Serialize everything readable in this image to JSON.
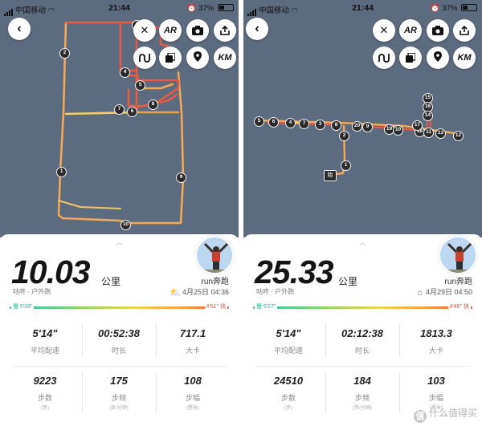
{
  "colors": {
    "map_bg": "#5d6b7e",
    "route_warm": "#f0a85a",
    "route_hot": "#e45b49",
    "route_cool": "#f5cf66",
    "marker": "#2b2b2b"
  },
  "left": {
    "status": {
      "carrier": "中国移动",
      "time": "21:44",
      "battery": "37%"
    },
    "controls": {
      "close": "✕",
      "ar": "AR",
      "camera_icon": "camera-icon",
      "share_icon": "share-icon",
      "route_icon": "route-icon",
      "layers_icon": "layers-icon",
      "location_icon": "location-icon",
      "km": "KM"
    },
    "markers": [
      {
        "label": "2"
      },
      {
        "label": "3"
      },
      {
        "label": "4"
      },
      {
        "label": "5"
      },
      {
        "label": "7"
      },
      {
        "label": "6"
      },
      {
        "label": "8"
      },
      {
        "label": "1"
      },
      {
        "label": "9"
      },
      {
        "label": "10"
      }
    ],
    "distance": "10.03",
    "unit": "公里",
    "username": "run奔跑",
    "subtitle": "咕咚 · 户外跑",
    "weather_icon": "cloud-sun-icon",
    "date": "4月25日 04:36",
    "pace_slow": "慢 5'39\"",
    "pace_fast": "4'51\" 快",
    "stats": [
      {
        "value": "5'14\"",
        "label": "平均配速",
        "sub": ""
      },
      {
        "value": "00:52:38",
        "label": "时长",
        "sub": ""
      },
      {
        "value": "717.1",
        "label": "大卡",
        "sub": ""
      },
      {
        "value": "9223",
        "label": "步数",
        "sub": "(步)"
      },
      {
        "value": "175",
        "label": "步频",
        "sub": "(步/分钟)"
      },
      {
        "value": "108",
        "label": "步幅",
        "sub": "(厘米)"
      }
    ]
  },
  "right": {
    "status": {
      "carrier": "中国移动",
      "time": "21:44",
      "battery": "37%"
    },
    "controls": {
      "close": "✕",
      "ar": "AR",
      "camera_icon": "camera-icon",
      "share_icon": "share-icon",
      "route_icon": "route-icon",
      "layers_icon": "layers-icon",
      "location_icon": "location-icon",
      "km": "KM"
    },
    "markers": [
      {
        "label": "5"
      },
      {
        "label": "6"
      },
      {
        "label": "4"
      },
      {
        "label": "7"
      },
      {
        "label": "3"
      },
      {
        "label": "8"
      },
      {
        "label": "20"
      },
      {
        "label": "9"
      },
      {
        "label": "2"
      },
      {
        "label": "19"
      },
      {
        "label": "10"
      },
      {
        "label": "18"
      },
      {
        "label": "11"
      },
      {
        "label": "13"
      },
      {
        "label": "12"
      },
      {
        "label": "15"
      },
      {
        "label": "16"
      },
      {
        "label": "14"
      },
      {
        "label": "17"
      },
      {
        "label": "1"
      }
    ],
    "start_label": "始",
    "distance": "25.33",
    "unit": "公里",
    "username": "run奔跑",
    "subtitle": "咕咚 · 户外跑",
    "weather_icon": "sun-icon",
    "date": "4月29日 04:50",
    "pace_slow": "慢 6'27\"",
    "pace_fast": "4'49\" 快",
    "stats": [
      {
        "value": "5'14\"",
        "label": "平均配速",
        "sub": ""
      },
      {
        "value": "02:12:38",
        "label": "时长",
        "sub": ""
      },
      {
        "value": "1813.3",
        "label": "大卡",
        "sub": ""
      },
      {
        "value": "24510",
        "label": "步数",
        "sub": "(步)"
      },
      {
        "value": "184",
        "label": "步频",
        "sub": "(步/分钟)"
      },
      {
        "value": "103",
        "label": "步幅",
        "sub": "(厘米)"
      }
    ]
  },
  "watermark": "什么值得买",
  "watermark_logo": "值"
}
